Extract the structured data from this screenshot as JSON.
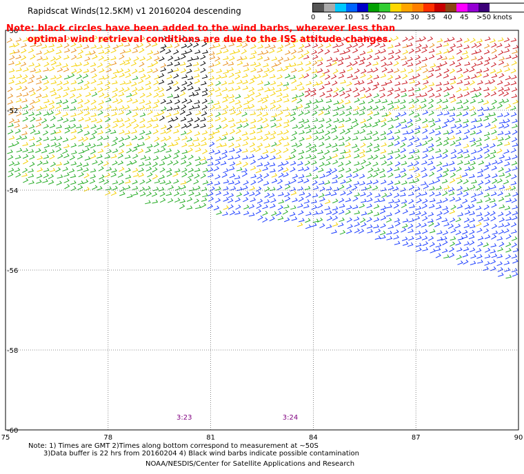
{
  "title": "Rapidscat Winds(12.5KM) v1 20160204 descending",
  "note_line1": "Note: black circles have been added to the wind barbs, wherever less than",
  "note_line2": "optimal wind retrieval conditions are due to the ISS attitude changes.",
  "legend": {
    "unit": "knots",
    "labels": [
      "0",
      "5",
      "10",
      "15",
      "20",
      "25",
      "30",
      "35",
      "40",
      "45",
      ">50"
    ],
    "colors": [
      "#555555",
      "#aaaaaa",
      "#00c8ff",
      "#0064ff",
      "#0000c8",
      "#00a000",
      "#32cd32",
      "#ffd700",
      "#ffa500",
      "#ff7f00",
      "#ff3000",
      "#c80000",
      "#8b4513",
      "#ff00ff",
      "#9400d3",
      "#3c0078"
    ]
  },
  "map": {
    "lon_ticks": [
      "75",
      "78",
      "81",
      "84",
      "87",
      "90"
    ],
    "lat_ticks": [
      "-50",
      "-52",
      "-54",
      "-56",
      "-58",
      "-60"
    ],
    "time_labels": [
      {
        "text": "3:23",
        "lon": 80.0
      },
      {
        "text": "3:24",
        "lon": 83.1
      }
    ],
    "lon_range": [
      75,
      90
    ],
    "lat_range": [
      -60,
      -50
    ]
  },
  "footer": {
    "line1": "Note: 1) Times are GMT 2)Times along bottom correspond to measurement at ~50S",
    "line2": "3)Data buffer is 22 hrs from 20160204 4) Black wind barbs indicate possible contamination",
    "credit": "NOAA/NESDIS/Center for Satellite Applications and Research"
  },
  "colors": {
    "note": "#ff0000",
    "time_label": "#800080",
    "black_barb": "#000000",
    "speed_green": "#22aa22",
    "speed_blue": "#1a3cff",
    "speed_yellow": "#f5d000",
    "speed_orange": "#e89020",
    "speed_red": "#c8141e"
  }
}
